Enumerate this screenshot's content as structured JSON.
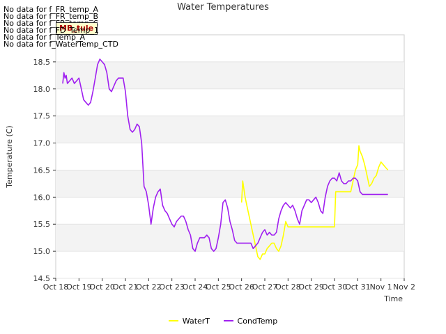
{
  "chart_data": {
    "type": "line",
    "title": "Water Temperatures",
    "xlabel": "Time",
    "ylabel": "Temperature (C)",
    "xlim": [
      0,
      15
    ],
    "ylim": [
      14.5,
      19.0
    ],
    "x_ticks": [
      0,
      1,
      2,
      3,
      4,
      5,
      6,
      7,
      8,
      9,
      10,
      11,
      12,
      13,
      14,
      15
    ],
    "x_tick_labels": [
      "Oct 18",
      "Oct 19",
      "Oct 20",
      "Oct 21",
      "Oct 22",
      "Oct 23",
      "Oct 24",
      "Oct 25",
      "Oct 26",
      "Oct 27",
      "Oct 28",
      "Oct 29",
      "Oct 30",
      "Oct 31",
      "Nov 1",
      "Nov 2"
    ],
    "y_ticks": [
      14.5,
      15.0,
      15.5,
      16.0,
      16.5,
      17.0,
      17.5,
      18.0,
      18.5
    ],
    "y_tick_labels": [
      "14.5",
      "15.0",
      "15.5",
      "16.0",
      "16.5",
      "17.0",
      "17.5",
      "18.0",
      "18.5"
    ],
    "grid_bands": true,
    "legend_position": "bottom-center",
    "series": [
      {
        "name": "WaterT",
        "color": "#ffff00",
        "x": [
          8.0,
          8.05,
          8.1,
          8.15,
          8.25,
          8.4,
          8.55,
          8.7,
          8.8,
          8.9,
          9.0,
          9.1,
          9.2,
          9.3,
          9.4,
          9.5,
          9.6,
          9.7,
          9.8,
          9.9,
          10.0,
          10.05,
          10.2,
          10.3,
          10.4,
          10.5,
          11.0,
          11.5,
          12.0,
          12.05,
          12.2,
          12.5,
          12.7,
          12.8,
          12.9,
          13.0,
          13.05,
          13.1,
          13.15,
          13.2,
          13.3,
          13.4,
          13.5,
          13.6,
          13.7,
          13.8,
          13.9,
          14.0,
          14.1,
          14.2,
          14.3
        ],
        "y": [
          15.9,
          16.3,
          16.15,
          16.0,
          15.8,
          15.5,
          15.2,
          14.9,
          14.85,
          14.95,
          14.95,
          15.05,
          15.1,
          15.15,
          15.15,
          15.05,
          15.0,
          15.1,
          15.3,
          15.55,
          15.45,
          15.45,
          15.45,
          15.45,
          15.45,
          15.45,
          15.45,
          15.45,
          15.45,
          16.1,
          16.1,
          16.1,
          16.1,
          16.3,
          16.5,
          16.6,
          16.95,
          16.85,
          16.8,
          16.75,
          16.6,
          16.4,
          16.2,
          16.25,
          16.35,
          16.4,
          16.55,
          16.65,
          16.6,
          16.55,
          16.5
        ]
      },
      {
        "name": "CondTemp",
        "color": "#a020f0",
        "x": [
          0.3,
          0.35,
          0.4,
          0.45,
          0.5,
          0.6,
          0.7,
          0.8,
          0.9,
          1.0,
          1.1,
          1.2,
          1.3,
          1.4,
          1.5,
          1.6,
          1.7,
          1.8,
          1.9,
          2.0,
          2.1,
          2.2,
          2.3,
          2.4,
          2.5,
          2.6,
          2.7,
          2.8,
          2.9,
          3.0,
          3.1,
          3.2,
          3.3,
          3.4,
          3.5,
          3.6,
          3.7,
          3.8,
          3.9,
          4.0,
          4.1,
          4.2,
          4.3,
          4.4,
          4.5,
          4.6,
          4.7,
          4.8,
          4.9,
          5.0,
          5.1,
          5.2,
          5.3,
          5.4,
          5.5,
          5.6,
          5.7,
          5.8,
          5.9,
          6.0,
          6.1,
          6.2,
          6.3,
          6.4,
          6.5,
          6.6,
          6.7,
          6.8,
          6.9,
          7.0,
          7.1,
          7.2,
          7.3,
          7.4,
          7.5,
          7.6,
          7.7,
          7.8,
          7.9,
          8.0,
          8.1,
          8.2,
          8.3,
          8.4,
          8.5,
          8.6,
          8.7,
          8.8,
          8.9,
          9.0,
          9.1,
          9.2,
          9.3,
          9.4,
          9.5,
          9.6,
          9.7,
          9.8,
          9.9,
          10.0,
          10.1,
          10.2,
          10.3,
          10.4,
          10.5,
          10.6,
          10.7,
          10.8,
          10.9,
          11.0,
          11.1,
          11.2,
          11.3,
          11.4,
          11.5,
          11.6,
          11.7,
          11.8,
          11.9,
          12.0,
          12.1,
          12.2,
          12.3,
          12.4,
          12.5,
          12.6,
          12.7,
          12.8,
          12.9,
          13.0,
          13.1,
          13.2,
          13.3,
          13.4,
          13.5,
          13.6,
          13.7,
          13.8,
          13.9,
          14.0,
          14.1,
          14.2,
          14.3
        ],
        "y": [
          18.1,
          18.3,
          18.2,
          18.25,
          18.1,
          18.15,
          18.2,
          18.1,
          18.15,
          18.2,
          18.0,
          17.8,
          17.75,
          17.7,
          17.75,
          17.95,
          18.2,
          18.45,
          18.55,
          18.5,
          18.45,
          18.3,
          18.0,
          17.95,
          18.05,
          18.15,
          18.2,
          18.2,
          18.2,
          17.95,
          17.5,
          17.25,
          17.2,
          17.25,
          17.35,
          17.3,
          17.0,
          16.2,
          16.1,
          15.85,
          15.5,
          15.8,
          16.0,
          16.1,
          16.15,
          15.85,
          15.75,
          15.7,
          15.6,
          15.5,
          15.45,
          15.55,
          15.6,
          15.65,
          15.65,
          15.55,
          15.4,
          15.3,
          15.05,
          15.0,
          15.15,
          15.25,
          15.25,
          15.25,
          15.3,
          15.25,
          15.05,
          15.0,
          15.05,
          15.25,
          15.5,
          15.9,
          15.95,
          15.8,
          15.55,
          15.4,
          15.2,
          15.15,
          15.15,
          15.15,
          15.15,
          15.15,
          15.15,
          15.15,
          15.05,
          15.1,
          15.15,
          15.25,
          15.35,
          15.4,
          15.3,
          15.35,
          15.3,
          15.3,
          15.35,
          15.6,
          15.75,
          15.85,
          15.9,
          15.85,
          15.8,
          15.85,
          15.75,
          15.6,
          15.5,
          15.75,
          15.85,
          15.95,
          15.95,
          15.9,
          15.95,
          16.0,
          15.9,
          15.75,
          15.7,
          16.0,
          16.2,
          16.3,
          16.35,
          16.35,
          16.3,
          16.45,
          16.3,
          16.25,
          16.25,
          16.3,
          16.3,
          16.35,
          16.35,
          16.3,
          16.1,
          16.05,
          16.05,
          16.05,
          16.05,
          16.05,
          16.05,
          16.05,
          16.05,
          16.05,
          16.05,
          16.05,
          16.05
        ]
      }
    ]
  },
  "nodata_lines": [
    "No data for f_FR_temp_A",
    "No data for f_FR_temp_B",
    "No data for f_FR_temp_C",
    "No data for f_FD_Temp_1",
    "No data for f_Temp_A",
    "No data for f_WaterTemp_CTD"
  ],
  "tooltip": "MB_tule"
}
